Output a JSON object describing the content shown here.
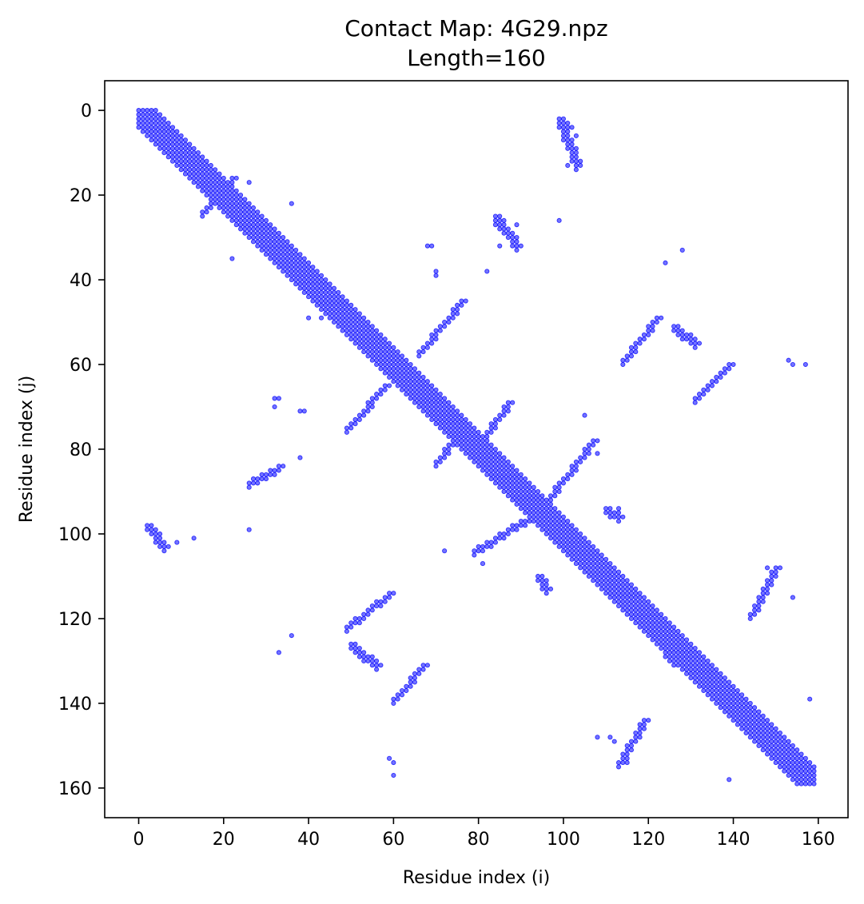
{
  "chart_data": {
    "type": "scatter",
    "title": "Contact Map: 4G29.npz",
    "subtitle": "Length=160",
    "xlabel": "Residue index (i)",
    "ylabel": "Residue index (j)",
    "xlim": [
      -8,
      167
    ],
    "ylim": [
      167,
      -7
    ],
    "y_inverted": true,
    "xticks": [
      0,
      20,
      40,
      60,
      80,
      100,
      120,
      140,
      160
    ],
    "yticks": [
      0,
      20,
      40,
      60,
      80,
      100,
      120,
      140,
      160
    ],
    "grid": false,
    "marker_color": "#0000ff",
    "diagonal_band": {
      "from": 0,
      "to": 159,
      "offsets": [
        -4,
        -3,
        -2,
        -1,
        0,
        1,
        2,
        3,
        4
      ]
    },
    "contact_segments": [
      {
        "i": [
          1,
          9
        ],
        "j": [
          1,
          9
        ]
      },
      {
        "i": [
          15,
          22
        ],
        "j": [
          24,
          16
        ]
      },
      {
        "i": [
          49,
          58
        ],
        "j": [
          75,
          65
        ]
      },
      {
        "i": [
          66,
          76
        ],
        "j": [
          57,
          45
        ]
      },
      {
        "i": [
          70,
          77
        ],
        "j": [
          83,
          74
        ]
      },
      {
        "i": [
          79,
          87
        ],
        "j": [
          80,
          69
        ]
      },
      {
        "i": [
          79,
          92
        ],
        "j": [
          104,
          96
        ]
      },
      {
        "i": [
          93,
          107
        ],
        "j": [
          96,
          78
        ]
      },
      {
        "i": [
          49,
          59
        ],
        "j": [
          122,
          114
        ]
      },
      {
        "i": [
          60,
          67
        ],
        "j": [
          139,
          131
        ]
      },
      {
        "i": [
          114,
          122
        ],
        "j": [
          59,
          49
        ]
      },
      {
        "i": [
          131,
          139
        ],
        "j": [
          68,
          60
        ]
      },
      {
        "i": [
          113,
          119
        ],
        "j": [
          154,
          144
        ]
      },
      {
        "i": [
          144,
          150
        ],
        "j": [
          119,
          108
        ]
      },
      {
        "i": [
          26,
          33
        ],
        "j": [
          88,
          84
        ]
      },
      {
        "i": [
          2,
          6
        ],
        "j": [
          98,
          103
        ]
      },
      {
        "i": [
          99,
          103
        ],
        "j": [
          2,
          13
        ]
      },
      {
        "i": [
          84,
          89
        ],
        "j": [
          25,
          32
        ]
      },
      {
        "i": [
          50,
          56
        ],
        "j": [
          126,
          131
        ]
      },
      {
        "i": [
          94,
          96
        ],
        "j": [
          110,
          113
        ]
      },
      {
        "i": [
          110,
          113
        ],
        "j": [
          94,
          96
        ]
      },
      {
        "i": [
          121,
          126
        ],
        "j": [
          124,
          130
        ]
      },
      {
        "i": [
          126,
          131
        ],
        "j": [
          51,
          55
        ]
      }
    ],
    "contact_points": [
      [
        26,
        17
      ],
      [
        36,
        22
      ],
      [
        22,
        35
      ],
      [
        39,
        39
      ],
      [
        40,
        49
      ],
      [
        43,
        49
      ],
      [
        38,
        71
      ],
      [
        39,
        71
      ],
      [
        32,
        68
      ],
      [
        33,
        68
      ],
      [
        32,
        70
      ],
      [
        38,
        82
      ],
      [
        26,
        99
      ],
      [
        9,
        102
      ],
      [
        13,
        101
      ],
      [
        6,
        103
      ],
      [
        68,
        32
      ],
      [
        69,
        32
      ],
      [
        70,
        38
      ],
      [
        70,
        39
      ],
      [
        82,
        38
      ],
      [
        99,
        26
      ],
      [
        72,
        104
      ],
      [
        81,
        107
      ],
      [
        105,
        72
      ],
      [
        108,
        81
      ],
      [
        110,
        95
      ],
      [
        111,
        96
      ],
      [
        113,
        94
      ],
      [
        113,
        96
      ],
      [
        124,
        36
      ],
      [
        128,
        33
      ],
      [
        153,
        59
      ],
      [
        154,
        60
      ],
      [
        157,
        60
      ],
      [
        148,
        108
      ],
      [
        154,
        115
      ],
      [
        158,
        139
      ],
      [
        139,
        158
      ],
      [
        108,
        148
      ],
      [
        36,
        124
      ],
      [
        33,
        128
      ],
      [
        59,
        153
      ],
      [
        60,
        154
      ],
      [
        60,
        157
      ],
      [
        115,
        154
      ],
      [
        112,
        149
      ],
      [
        111,
        148
      ],
      [
        85,
        25
      ],
      [
        86,
        26
      ],
      [
        84,
        27
      ],
      [
        85,
        32
      ],
      [
        89,
        27
      ],
      [
        89,
        30
      ],
      [
        88,
        29
      ],
      [
        102,
        4
      ],
      [
        103,
        6
      ],
      [
        101,
        9
      ],
      [
        102,
        9
      ],
      [
        101,
        13
      ],
      [
        100,
        2
      ],
      [
        101,
        3
      ],
      [
        99,
        2
      ]
    ]
  }
}
